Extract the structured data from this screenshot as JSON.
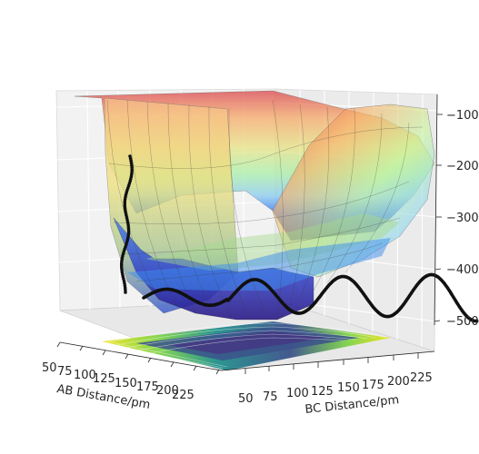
{
  "chart_data": {
    "type": "surface3d",
    "title": "",
    "xlabel": "AB Distance/pm",
    "ylabel": "BC Distance/pm",
    "zlabel": "",
    "x_ticks": [
      "50",
      "75",
      "100",
      "125",
      "150",
      "175",
      "200",
      "225"
    ],
    "y_ticks": [
      "50",
      "75",
      "100",
      "125",
      "150",
      "175",
      "200",
      "225"
    ],
    "z_ticks": [
      "−500",
      "−400",
      "−300",
      "−200",
      "−100"
    ],
    "xlim": [
      50,
      240
    ],
    "ylim": [
      50,
      240
    ],
    "zlim": [
      -540,
      -80
    ],
    "grid": true,
    "colormap_surface": "jet",
    "colormap_contour": "viridis",
    "surface_opacity": 0.45,
    "trajectory": {
      "ab_distance_start": 55,
      "ab_distance_end": 240,
      "bc_distance": 74,
      "energy_min": -470,
      "energy_max": -470,
      "description_free": true
    }
  }
}
